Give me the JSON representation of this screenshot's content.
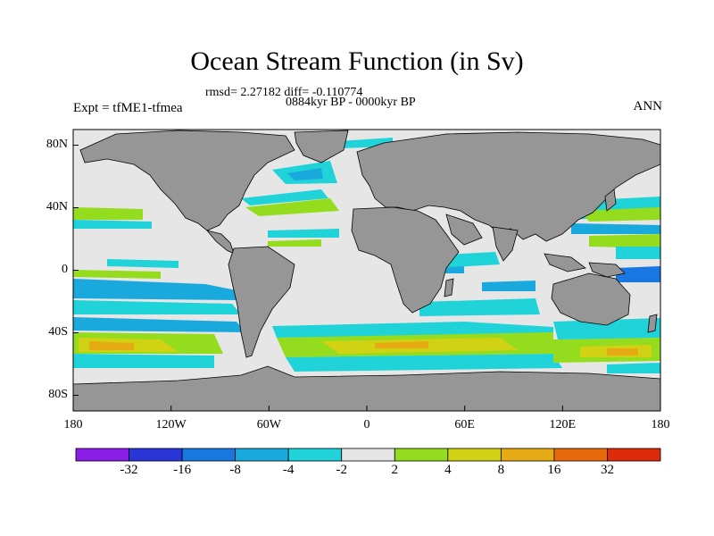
{
  "title": "Ocean Stream Function (in Sv)",
  "stats_line": "rmsd= 2.27182 diff= -0.110774",
  "period": "0884kyr BP - 0000kyr BP",
  "experiment": "Expt = tfME1-tfmea",
  "season": "ANN",
  "lat_labels": [
    {
      "lat": 80,
      "text": "80N"
    },
    {
      "lat": 40,
      "text": "40N"
    },
    {
      "lat": 0,
      "text": "0"
    },
    {
      "lat": -40,
      "text": "40S"
    },
    {
      "lat": -80,
      "text": "80S"
    }
  ],
  "lon_labels": [
    {
      "lon": -180,
      "text": "180"
    },
    {
      "lon": -120,
      "text": "120W"
    },
    {
      "lon": -60,
      "text": "60W"
    },
    {
      "lon": 0,
      "text": "0"
    },
    {
      "lon": 60,
      "text": "60E"
    },
    {
      "lon": 120,
      "text": "120E"
    },
    {
      "lon": 180,
      "text": "180"
    }
  ],
  "colorbar": {
    "colors": [
      "#8a1ee6",
      "#2a35d8",
      "#1877e0",
      "#1aa9dc",
      "#1fd3d8",
      "#e6e6e6",
      "#96dc1e",
      "#d2d214",
      "#e6aa14",
      "#e66a0a",
      "#dc2a0a"
    ],
    "labels": [
      "-32",
      "-16",
      "-8",
      "-4",
      "-2",
      "2",
      "4",
      "8",
      "16",
      "32"
    ]
  },
  "colors": {
    "land": "#969696",
    "ocean": "#e6e6e6"
  }
}
